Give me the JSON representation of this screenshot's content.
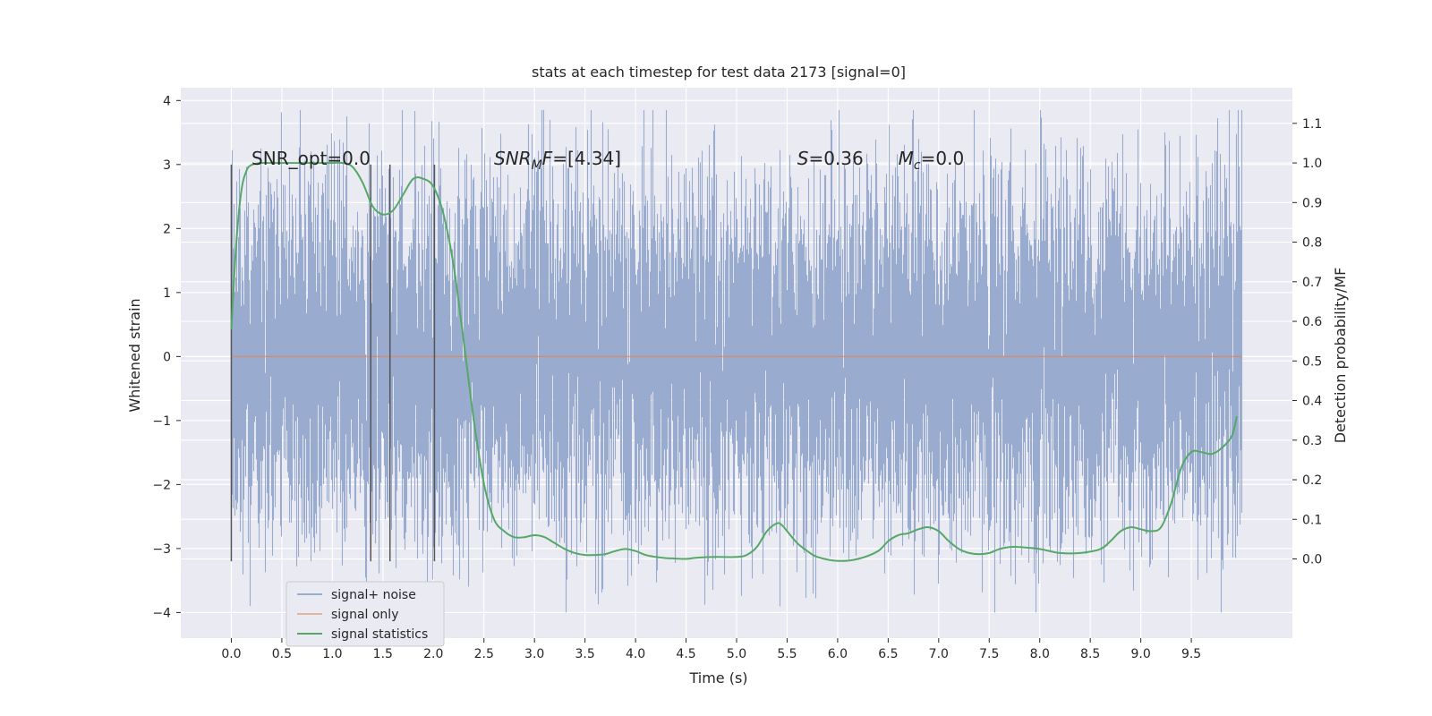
{
  "chart_data": {
    "type": "line",
    "title": "stats at each timestep for test data 2173 [signal=0]",
    "xlabel": "Time (s)",
    "ylabel_left": "Whitened strain",
    "ylabel_right": "Detection probability/MF",
    "xlim": [
      -0.5,
      10.5
    ],
    "ylim_left": [
      -4.4,
      4.2
    ],
    "ylim_right": [
      -0.2,
      1.19
    ],
    "xticks": [
      "0.0",
      "0.5",
      "1.0",
      "1.5",
      "2.0",
      "2.5",
      "3.0",
      "3.5",
      "4.0",
      "4.5",
      "5.0",
      "5.5",
      "6.0",
      "6.5",
      "7.0",
      "7.5",
      "8.0",
      "8.5",
      "9.0",
      "9.5"
    ],
    "yticks_left": [
      "4",
      "3",
      "2",
      "1",
      "0",
      "−1",
      "−2",
      "−3",
      "−4"
    ],
    "yticks_right": [
      "1.1",
      "1.0",
      "0.9",
      "0.8",
      "0.7",
      "0.6",
      "0.5",
      "0.4",
      "0.3",
      "0.2",
      "0.1",
      "0.0"
    ],
    "grid": true,
    "legend_position": "lower-left",
    "colors": {
      "background": "#eaeaf2",
      "grid": "#ffffff",
      "noise": "#9aabd0",
      "signal_only": "#dd8452",
      "statistics": "#55a868",
      "vlines": "#555555"
    },
    "annotations": [
      {
        "text": "SNR_opt=0.0",
        "x": 0.2,
        "y": 3.0
      },
      {
        "text": "SNR",
        "sub": "M",
        "suffix": "F=[4.34]",
        "x": 2.6,
        "y": 3.0
      },
      {
        "text": "S",
        "suffix": "=0.36",
        "x": 5.6,
        "y": 3.0
      },
      {
        "text": "M",
        "sub": "c",
        "suffix": "=0.0",
        "x": 6.6,
        "y": 3.0
      }
    ],
    "vertical_lines": [
      0.0,
      1.38,
      1.57,
      2.01
    ],
    "series": [
      {
        "name": "signal+ noise",
        "axis": "left",
        "style": "noise-band",
        "x_range": [
          0.0,
          10.0
        ],
        "approx_std": 0.9,
        "approx_extremes": [
          -4.0,
          3.85
        ]
      },
      {
        "name": "signal only",
        "axis": "left",
        "x": [
          0.0,
          10.0
        ],
        "values": [
          0.0,
          0.0
        ]
      },
      {
        "name": "signal statistics",
        "axis": "right",
        "x": [
          0.0,
          0.05,
          0.1,
          0.15,
          0.2,
          0.3,
          0.4,
          0.5,
          0.6,
          0.7,
          0.8,
          0.9,
          1.0,
          1.1,
          1.2,
          1.3,
          1.4,
          1.5,
          1.6,
          1.7,
          1.8,
          1.9,
          2.0,
          2.1,
          2.2,
          2.3,
          2.4,
          2.5,
          2.6,
          2.7,
          2.8,
          2.9,
          3.0,
          3.1,
          3.2,
          3.3,
          3.4,
          3.5,
          3.6,
          3.7,
          3.8,
          3.9,
          4.0,
          4.1,
          4.2,
          4.3,
          4.4,
          4.5,
          4.6,
          4.8,
          5.0,
          5.1,
          5.2,
          5.3,
          5.4,
          5.45,
          5.5,
          5.6,
          5.7,
          5.8,
          6.0,
          6.2,
          6.4,
          6.5,
          6.6,
          6.7,
          6.8,
          6.9,
          7.0,
          7.1,
          7.2,
          7.3,
          7.4,
          7.5,
          7.6,
          7.7,
          7.8,
          8.0,
          8.2,
          8.4,
          8.6,
          8.7,
          8.8,
          8.9,
          9.0,
          9.1,
          9.2,
          9.3,
          9.4,
          9.5,
          9.6,
          9.7,
          9.8,
          9.9,
          9.95
        ],
        "values": [
          0.58,
          0.8,
          0.93,
          0.98,
          0.995,
          1.0,
          1.0,
          1.0,
          1.0,
          1.0,
          1.0,
          1.0,
          1.0,
          1.0,
          0.99,
          0.95,
          0.89,
          0.87,
          0.88,
          0.92,
          0.96,
          0.96,
          0.94,
          0.87,
          0.74,
          0.55,
          0.35,
          0.19,
          0.1,
          0.07,
          0.055,
          0.055,
          0.06,
          0.055,
          0.04,
          0.025,
          0.015,
          0.01,
          0.01,
          0.012,
          0.02,
          0.025,
          0.02,
          0.01,
          0.005,
          0.002,
          0.001,
          0.0,
          0.003,
          0.005,
          0.005,
          0.01,
          0.03,
          0.07,
          0.09,
          0.085,
          0.07,
          0.04,
          0.02,
          0.005,
          -0.005,
          0.0,
          0.02,
          0.045,
          0.06,
          0.065,
          0.075,
          0.08,
          0.07,
          0.045,
          0.025,
          0.015,
          0.012,
          0.015,
          0.025,
          0.03,
          0.03,
          0.025,
          0.015,
          0.015,
          0.025,
          0.045,
          0.07,
          0.08,
          0.075,
          0.07,
          0.08,
          0.14,
          0.23,
          0.27,
          0.27,
          0.265,
          0.28,
          0.31,
          0.36
        ]
      }
    ]
  }
}
